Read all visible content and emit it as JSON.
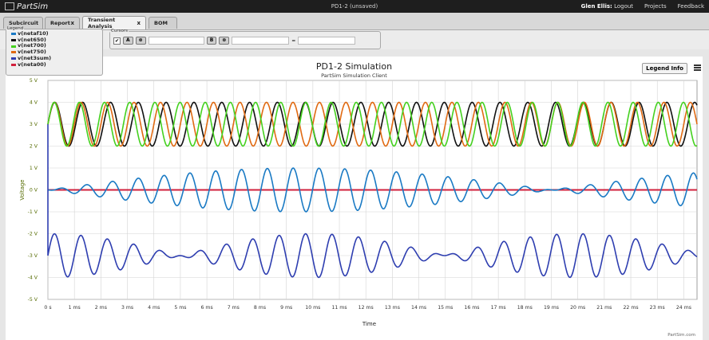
{
  "app": {
    "logo_text": "PartSim",
    "document_title": "PD1-2 (unsaved)"
  },
  "top_links": {
    "user": "Glen Ellis:",
    "logout": "Logout",
    "projects": "Projects",
    "feedback": "Feedback"
  },
  "tabs": [
    {
      "label": "Subcircuit"
    },
    {
      "label": "Report",
      "close": "x"
    },
    {
      "label": "Transient Analysis",
      "close": "x"
    },
    {
      "label": "BOM"
    }
  ],
  "legend_panel": {
    "title": "Legend",
    "items": [
      {
        "label": "v(netaf10)",
        "color": "#1a7ac4"
      },
      {
        "label": "v(net650)",
        "color": "#111111"
      },
      {
        "label": "v(net700)",
        "color": "#44d11f"
      },
      {
        "label": "v(net750)",
        "color": "#e06a12"
      },
      {
        "label": "v(net3sum)",
        "color": "#2e3eb0"
      },
      {
        "label": "v(neta00)",
        "color": "#d1213d"
      }
    ]
  },
  "cursors": {
    "title": "Cursors",
    "check": "✔",
    "a_label": "A",
    "b_label": "B",
    "clear": "⊗",
    "eq": "="
  },
  "chart": {
    "legend_info": "Legend Info",
    "credit": "PartSim.com"
  },
  "chart_data": {
    "type": "line",
    "title": "PD1-2 Simulation",
    "subtitle": "PartSim Simulation Client",
    "xlabel": "Time",
    "ylabel": "Voltage",
    "xlim": [
      0,
      24.5
    ],
    "ylim": [
      -5,
      5
    ],
    "x_ticks": [
      "0 s",
      "1 ms",
      "2 ms",
      "3 ms",
      "4 ms",
      "5 ms",
      "6 ms",
      "7 ms",
      "8 ms",
      "9 ms",
      "10 ms",
      "11 ms",
      "12 ms",
      "13 ms",
      "14 ms",
      "15 ms",
      "16 ms",
      "17 ms",
      "18 ms",
      "19 ms",
      "20 ms",
      "21 ms",
      "22 ms",
      "23 ms",
      "24 ms"
    ],
    "y_ticks": [
      "5 V",
      "4 V",
      "3 V",
      "2 V",
      "1 V",
      "0 V",
      "-1 V",
      "-2 V",
      "-3 V",
      "-4 V",
      "-5 V"
    ],
    "grid": true,
    "series": [
      {
        "name": "v(netaf10)",
        "color": "#1a7ac4",
        "kind": "diff_beat",
        "offset": 0,
        "amp": 0.5,
        "f1": 1.0,
        "f2": 1.0526,
        "phase": 0
      },
      {
        "name": "v(net650)",
        "color": "#111111",
        "kind": "sine",
        "offset": 3,
        "amp": 1,
        "freq": 0.9524,
        "phase": 0
      },
      {
        "name": "v(net700)",
        "color": "#44d11f",
        "kind": "sine",
        "offset": 3,
        "amp": 1,
        "freq": 1.0526,
        "phase": 0
      },
      {
        "name": "v(net750)",
        "color": "#e06a12",
        "kind": "sine",
        "offset": 3,
        "amp": 1,
        "freq": 1.0,
        "phase": 0
      },
      {
        "name": "v(net3sum)",
        "color": "#2e3eb0",
        "kind": "sum_beat",
        "offset": -3,
        "amp": 0.5,
        "f1": 0.9524,
        "f2": 1.0526,
        "phase": 0,
        "start": 3
      },
      {
        "name": "v(neta00)",
        "color": "#d1213d",
        "kind": "const",
        "offset": 0
      }
    ]
  }
}
